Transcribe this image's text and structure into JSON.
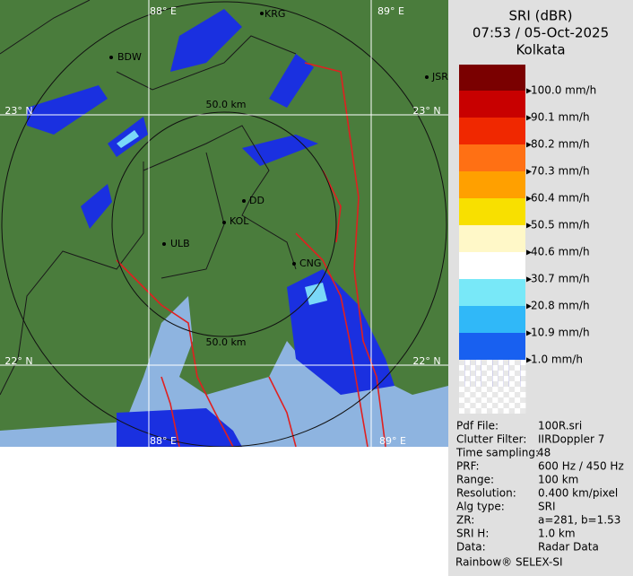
{
  "header": {
    "title": "SRI (dBR)",
    "time": "07:53 / 05-Oct-2025",
    "station": "Kolkata"
  },
  "legend": {
    "items": [
      {
        "label": "100.0 mm/h",
        "color": "#c80000"
      },
      {
        "label": "90.1 mm/h",
        "color": "#f02800"
      },
      {
        "label": "80.2 mm/h",
        "color": "#ff7014"
      },
      {
        "label": "70.3 mm/h",
        "color": "#ffa000"
      },
      {
        "label": "60.4 mm/h",
        "color": "#f8e000"
      },
      {
        "label": "50.5 mm/h",
        "color": "#fff8c8"
      },
      {
        "label": "40.6 mm/h",
        "color": "#ffffff"
      },
      {
        "label": "30.7 mm/h",
        "color": "#78e8f8"
      },
      {
        "label": "20.8 mm/h",
        "color": "#30b8f8"
      },
      {
        "label": "10.9 mm/h",
        "color": "#1860f0"
      },
      {
        "label": "1.0 mm/h",
        "color": "#0000c8"
      }
    ]
  },
  "map": {
    "grid_labels": {
      "lon1": "88° E",
      "lon2": "89° E",
      "lat1": "23° N",
      "lat2": "22° N",
      "lon1_bottom": "88° E",
      "lon2_bottom": "89° E",
      "lat1_right": "23° N",
      "lat2_right": "22° N"
    },
    "range_labels": [
      "50.0 km",
      "50.0 km"
    ],
    "places": [
      "BDW",
      "KRG",
      "JSR",
      "DD",
      "KOL",
      "ULB",
      "CNG"
    ]
  },
  "info": {
    "rows": [
      [
        "Pdf File:",
        "100R.sri"
      ],
      [
        "Clutter Filter:",
        "IIRDoppler 7"
      ],
      [
        "Time sampling:",
        "48"
      ],
      [
        "PRF:",
        "600 Hz / 450 Hz"
      ],
      [
        "Range:",
        "100 km"
      ],
      [
        "Resolution:",
        "0.400 km/pixel"
      ],
      [
        "Alg type:",
        "SRI"
      ],
      [
        "ZR:",
        "a=281, b=1.53"
      ],
      [
        "SRI H:",
        "1.0 km"
      ],
      [
        "Data:",
        "Radar Data"
      ]
    ],
    "footer": "Rainbow® SELEX-SI"
  }
}
